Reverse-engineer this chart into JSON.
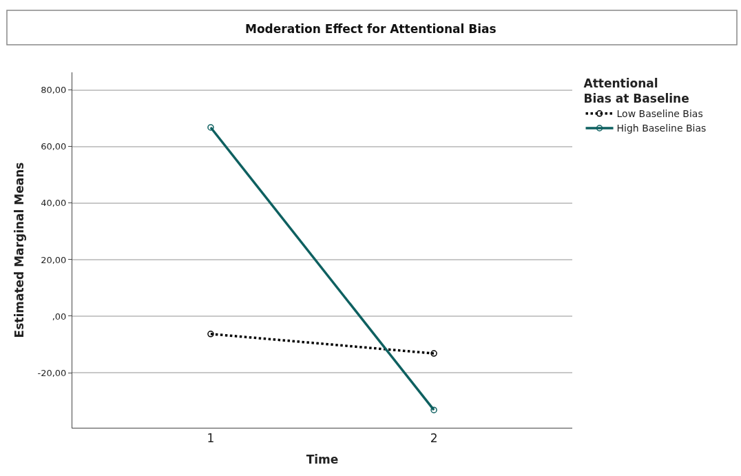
{
  "chart_data": {
    "type": "line",
    "title": "Moderation Effect for Attentional Bias",
    "xlabel": "Time",
    "ylabel": "Estimated Marginal Means",
    "legend_title": "Attentional Bias at Baseline",
    "categories": [
      "1",
      "2"
    ],
    "series": [
      {
        "name": "Low Baseline Bias",
        "color": "#000000",
        "line_style": "dotted",
        "values": [
          -6.3,
          -13.2
        ]
      },
      {
        "name": "High Baseline Bias",
        "color": "#0e6060",
        "line_style": "solid",
        "values": [
          66.8,
          -33.2
        ]
      }
    ],
    "ylim": [
      -39.5,
      86.3
    ],
    "yticks": [
      {
        "value": -20,
        "label": "-20,00"
      },
      {
        "value": 0,
        "label": ",00"
      },
      {
        "value": 20,
        "label": "20,00"
      },
      {
        "value": 40,
        "label": "40,00"
      },
      {
        "value": 60,
        "label": "60,00"
      },
      {
        "value": 80,
        "label": "80,00"
      }
    ],
    "grid": "y",
    "legend": "top right",
    "marker": "circle"
  }
}
